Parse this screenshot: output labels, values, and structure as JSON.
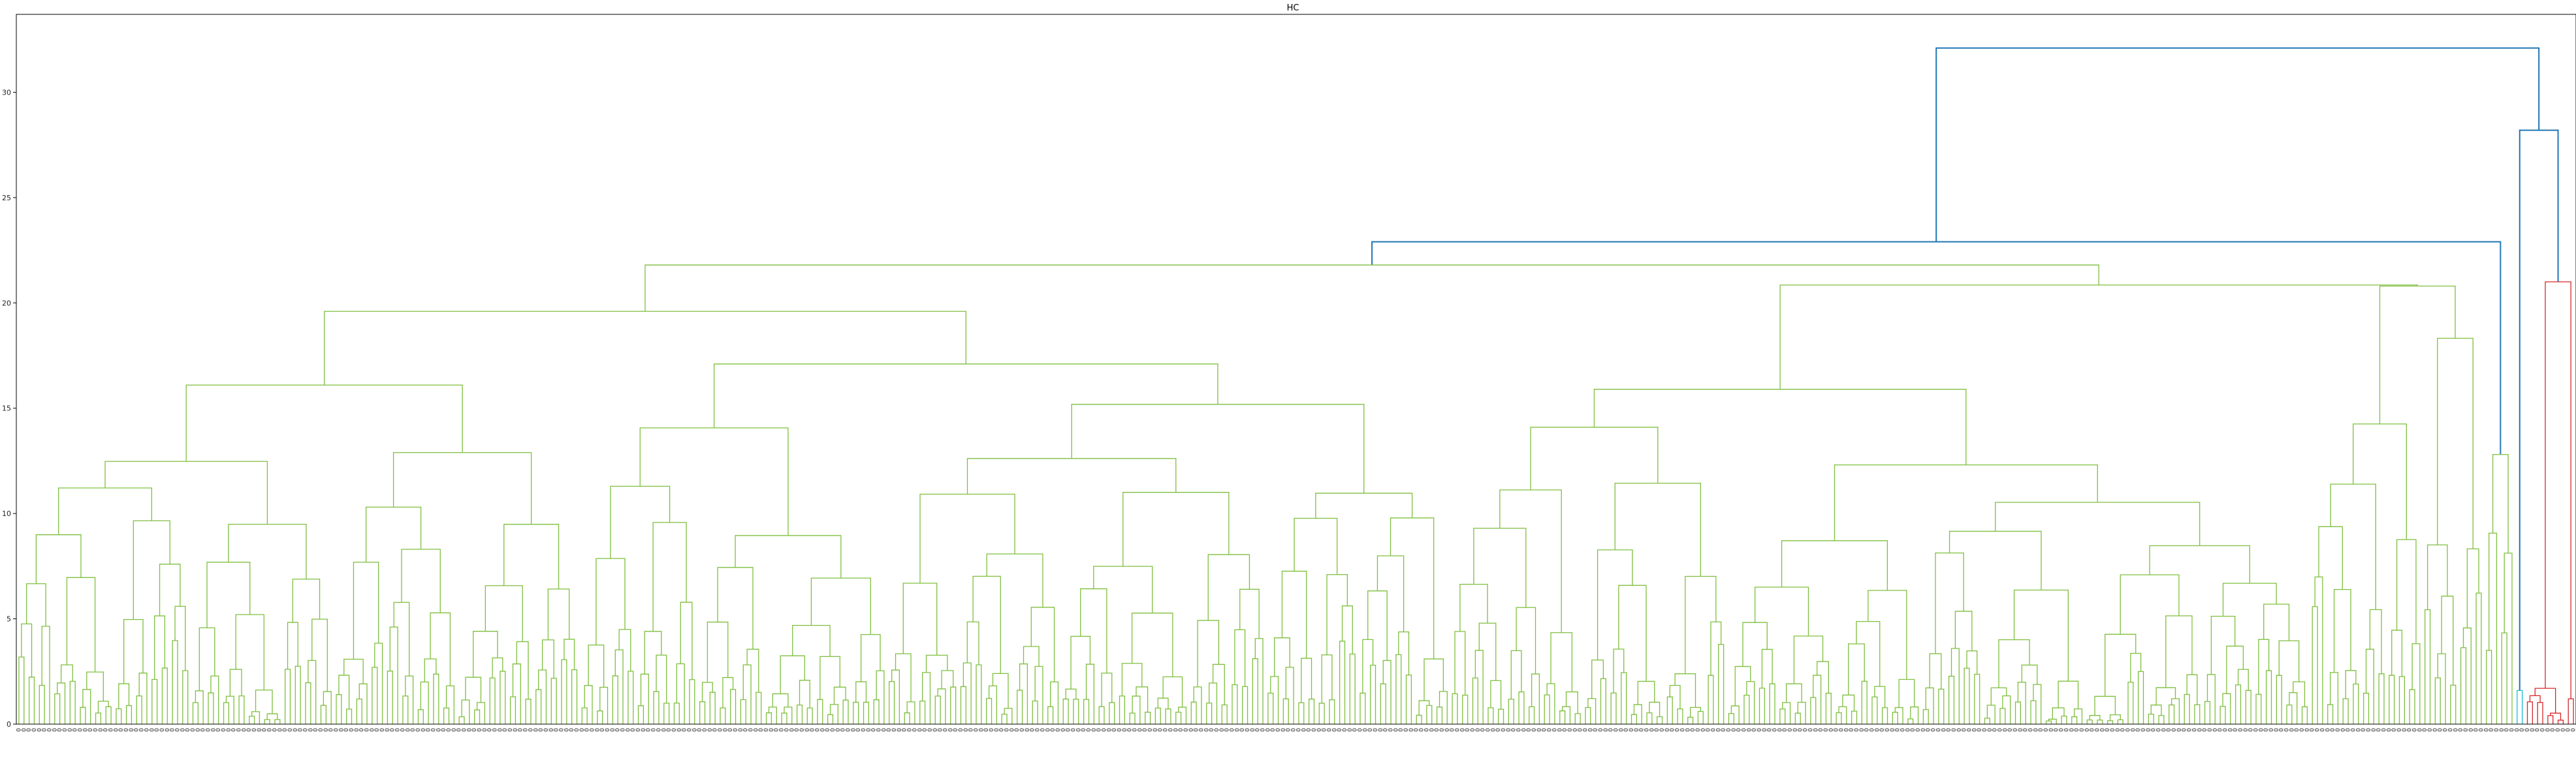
{
  "chart_data": {
    "type": "dendrogram",
    "title": "HC",
    "xlabel": "",
    "ylabel": "",
    "ylim": [
      0,
      33.7
    ],
    "y_ticks": [
      0,
      5,
      10,
      15,
      20,
      25,
      30
    ],
    "leaf_count": 494,
    "leaf_label": "0",
    "colors": {
      "cluster_1": "#7fbf3f",
      "cluster_2": "#d62728",
      "cluster_3": "#17becf",
      "above_threshold": "#1f77b4",
      "frame": "#000000"
    },
    "top_merges": [
      {
        "height": 32.1,
        "color": "above_threshold"
      },
      {
        "height": 28.2,
        "color": "above_threshold"
      },
      {
        "height": 24.0,
        "color": "above_threshold"
      },
      {
        "height": 22.9,
        "color": "above_threshold"
      },
      {
        "height": 21.8,
        "color": "cluster_1"
      },
      {
        "height": 21.0,
        "color": "cluster_2"
      },
      {
        "height": 20.8,
        "color": "cluster_1"
      },
      {
        "height": 19.6,
        "color": "cluster_1"
      },
      {
        "height": 17.1,
        "color": "cluster_1"
      },
      {
        "height": 16.1,
        "color": "cluster_1"
      },
      {
        "height": 16.0,
        "color": "cluster_1"
      },
      {
        "height": 15.9,
        "color": "cluster_1"
      },
      {
        "height": 15.1,
        "color": "cluster_1"
      },
      {
        "height": 14.6,
        "color": "cluster_1"
      },
      {
        "height": 14.3,
        "color": "cluster_1"
      },
      {
        "height": 13.7,
        "color": "cluster_1"
      },
      {
        "height": 13.5,
        "color": "cluster_1"
      },
      {
        "height": 12.8,
        "color": "cluster_1"
      },
      {
        "height": 1.7,
        "color": "cluster_2"
      },
      {
        "height": 1.6,
        "color": "cluster_3"
      }
    ]
  }
}
